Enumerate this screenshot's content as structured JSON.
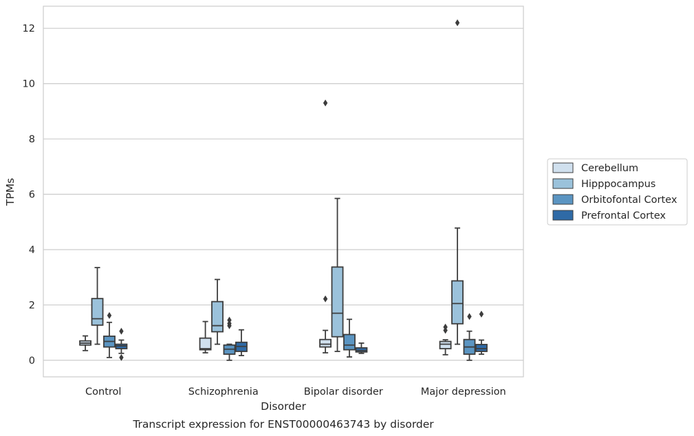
{
  "chart_data": {
    "type": "box",
    "xlabel": "Disorder",
    "ylabel": "TPMs",
    "caption": "Transcript expression for ENST00000463743 by disorder",
    "categories": [
      "Control",
      "Schizophrenia",
      "Bipolar disorder",
      "Major depression"
    ],
    "ylim": [
      -0.6,
      12.8
    ],
    "yticks": [
      0,
      2,
      4,
      6,
      8,
      10,
      12
    ],
    "grid": "horizontal",
    "legend_position": "right",
    "series": [
      {
        "name": "Cerebellum",
        "color": "#d0e0ee",
        "boxes": [
          {
            "whislo": 0.35,
            "q1": 0.55,
            "med": 0.62,
            "q3": 0.7,
            "whishi": 0.88,
            "fliers": []
          },
          {
            "whislo": 0.27,
            "q1": 0.38,
            "med": 0.42,
            "q3": 0.8,
            "whishi": 1.4,
            "fliers": []
          },
          {
            "whislo": 0.27,
            "q1": 0.48,
            "med": 0.58,
            "q3": 0.75,
            "whishi": 1.08,
            "fliers": [
              2.22,
              9.3
            ]
          },
          {
            "whislo": 0.2,
            "q1": 0.42,
            "med": 0.58,
            "q3": 0.68,
            "whishi": 0.74,
            "fliers": [
              1.08,
              1.2
            ]
          }
        ]
      },
      {
        "name": "Hipppocampus",
        "color": "#9bc2db",
        "boxes": [
          {
            "whislo": 0.58,
            "q1": 1.27,
            "med": 1.5,
            "q3": 2.23,
            "whishi": 3.35,
            "fliers": []
          },
          {
            "whislo": 0.58,
            "q1": 1.03,
            "med": 1.25,
            "q3": 2.12,
            "whishi": 2.92,
            "fliers": []
          },
          {
            "whislo": 0.32,
            "q1": 0.85,
            "med": 1.7,
            "q3": 3.37,
            "whishi": 5.85,
            "fliers": []
          },
          {
            "whislo": 0.58,
            "q1": 1.32,
            "med": 2.05,
            "q3": 2.87,
            "whishi": 4.78,
            "fliers": [
              12.2
            ]
          }
        ]
      },
      {
        "name": "Orbitofontal Cortex",
        "color": "#5b95c2",
        "boxes": [
          {
            "whislo": 0.1,
            "q1": 0.48,
            "med": 0.68,
            "q3": 0.87,
            "whishi": 1.37,
            "fliers": [
              1.62
            ]
          },
          {
            "whislo": 0.0,
            "q1": 0.22,
            "med": 0.4,
            "q3": 0.55,
            "whishi": 0.58,
            "fliers": [
              1.25,
              1.33,
              1.45
            ]
          },
          {
            "whislo": 0.12,
            "q1": 0.38,
            "med": 0.55,
            "q3": 0.93,
            "whishi": 1.48,
            "fliers": []
          },
          {
            "whislo": 0.0,
            "q1": 0.22,
            "med": 0.48,
            "q3": 0.75,
            "whishi": 1.05,
            "fliers": [
              1.58
            ]
          }
        ]
      },
      {
        "name": "Prefrontal Cortex",
        "color": "#2f6aa6",
        "boxes": [
          {
            "whislo": 0.25,
            "q1": 0.42,
            "med": 0.52,
            "q3": 0.58,
            "whishi": 0.73,
            "fliers": [
              0.1,
              1.05
            ]
          },
          {
            "whislo": 0.17,
            "q1": 0.32,
            "med": 0.5,
            "q3": 0.65,
            "whishi": 1.1,
            "fliers": []
          },
          {
            "whislo": 0.25,
            "q1": 0.3,
            "med": 0.35,
            "q3": 0.45,
            "whishi": 0.62,
            "fliers": []
          },
          {
            "whislo": 0.22,
            "q1": 0.32,
            "med": 0.42,
            "q3": 0.57,
            "whishi": 0.73,
            "fliers": [
              1.67
            ]
          }
        ]
      }
    ]
  }
}
